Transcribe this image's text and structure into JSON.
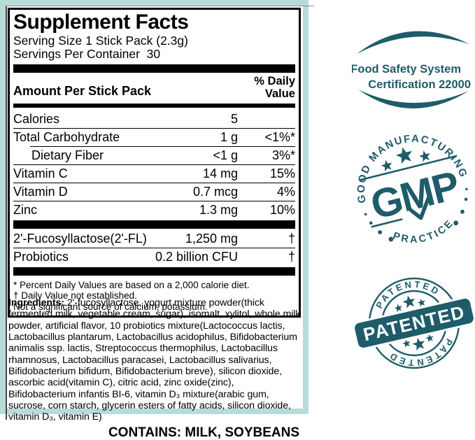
{
  "label": {
    "title": "Supplement Facts",
    "serving_size": "Serving Size 1 Stick Pack (2.3g)",
    "servings_per_container": "Servings Per Container  30",
    "column_header": "Amount Per Stick Pack",
    "dv_header_line1": "% Daily",
    "dv_header_line2": "Value",
    "rows": [
      {
        "name": "Calories",
        "amount": "5",
        "dv": "",
        "indent": false
      },
      {
        "name": "Total Carbohydrate",
        "amount": "1 g",
        "dv": "<1%*",
        "indent": false
      },
      {
        "name": "Dietary Fiber",
        "amount": "<1 g",
        "dv": "3%*",
        "indent": true
      },
      {
        "name": "Vitamin C",
        "amount": "14 mg",
        "dv": "15%",
        "indent": false
      },
      {
        "name": "Vitamin D",
        "amount": "0.7 mcg",
        "dv": "4%",
        "indent": false
      },
      {
        "name": "Zinc",
        "amount": "1.3 mg",
        "dv": "10%",
        "indent": false
      }
    ],
    "extra_rows": [
      {
        "name": "2'-Fucosyllactose(2'-FL)",
        "amount": "1,250 mg",
        "dv": "†"
      },
      {
        "name": "Probiotics",
        "amount": "0.2 billion CFU",
        "dv": "†"
      }
    ],
    "footnotes": [
      "* Percent Daily Values are based on a 2,000 calorie diet.",
      "† Daily Value not established.",
      "Not a significant source of calcium, potassium."
    ],
    "ingredients_label": "Ingredients:",
    "ingredients_text": " 2'-fucosyllactose, yogurt mixture powder(thick fermented milk, vegetable cream, sugar), isomalt, xylitol, whole milk powder, artificial flavor, 10 probiotics mixture(Lactococcus lactis, Lactobacillus plantarum, Lactobacillus acidophilus, Bifidobacterium animalis ssp. lactis, Streptococcus thermophilus, Lactobacillus rhamnosus, Lactobacillus paracasei, Lactobacillus salivarius, Bifidobacterium bifidum, Bifidobacterium breve), silicon dioxide, ascorbic acid(vitamin C), citric acid, zinc oxide(zinc), Bifidobacterium infantis BI-6, vitamin D₃ mixture(arabic gum, sucrose, corn starch, glycerin esters of fatty acids, silicon dioxide, vitamin D₃, vitamin E)",
    "contains": "CONTAINS: MILK, SOYBEANS"
  },
  "badges": {
    "fssc": {
      "line1": "Food Safety System",
      "line2": "Certification 22000"
    },
    "gmp": {
      "top_arc": "GOOD MANUFACTURING",
      "big": "GMP",
      "bottom_arc": "PRACTICE"
    },
    "patented": {
      "top_arc": "PATENTED",
      "ribbon": "PATENTED",
      "bottom_arc": "PATENTED"
    }
  },
  "colors": {
    "badge_teal": "#1e5c6a",
    "label_border": "#b7dcd7",
    "text": "#000000",
    "background": "#ffffff"
  }
}
